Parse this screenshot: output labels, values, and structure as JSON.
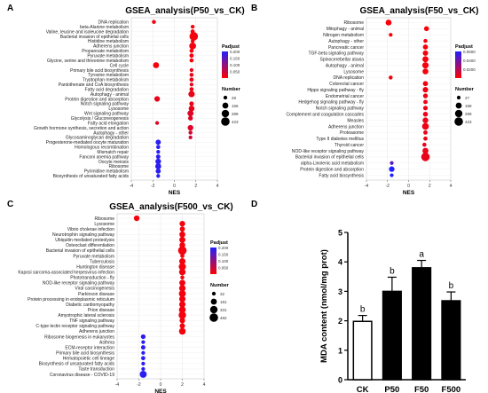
{
  "figure": {
    "panels": [
      {
        "letter": "A"
      },
      {
        "letter": "B"
      },
      {
        "letter": "C"
      },
      {
        "letter": "D"
      }
    ]
  },
  "legend_text": {
    "padjust_title": "Padjust",
    "number_title": "Number"
  },
  "colors": {
    "low_p": "#ff0000",
    "high_p": "#2020ff",
    "bar_black": "#000000",
    "bar_white": "#ffffff"
  },
  "chart_data": [
    {
      "panel": "A",
      "type": "scatter",
      "title": "GSEA_analysis(P50_vs_CK)",
      "xlabel": "NES",
      "ylabel": "",
      "xlim": [
        -4,
        4
      ],
      "xticks": [
        "-4",
        "-2",
        "0",
        "2",
        "4"
      ],
      "grid": true,
      "legend_placement": "right",
      "padjust_range": [
        0,
        0.2
      ],
      "padjust_ticks": [
        "0.200",
        "0.150",
        "0.100",
        "0.050"
      ],
      "size_legend": [
        29,
        156,
        289,
        423
      ],
      "terms": [
        {
          "name": "DNA replication",
          "nes": -1.9,
          "padj": 0.01,
          "n": 36
        },
        {
          "name": "beta-Alanine metabolism",
          "nes": 1.7,
          "padj": 0.01,
          "n": 31
        },
        {
          "name": "Valine, leucine and isoleucine degradation",
          "nes": 1.7,
          "padj": 0.01,
          "n": 48
        },
        {
          "name": "Bacterial invasion of epithelial cells",
          "nes": 1.8,
          "padj": 0.01,
          "n": 423
        },
        {
          "name": "Histidine metabolism",
          "nes": 1.7,
          "padj": 0.01,
          "n": 30
        },
        {
          "name": "Adherens junction",
          "nes": 1.7,
          "padj": 0.01,
          "n": 220
        },
        {
          "name": "Propanoate metabolism",
          "nes": 1.6,
          "padj": 0.01,
          "n": 40
        },
        {
          "name": "Pyruvate metabolism",
          "nes": 1.6,
          "padj": 0.01,
          "n": 50
        },
        {
          "name": "Glycine, serine and threonine metabolism",
          "nes": 1.6,
          "padj": 0.01,
          "n": 40
        },
        {
          "name": "Cell cycle",
          "nes": -1.7,
          "padj": 0.01,
          "n": 156
        },
        {
          "name": "Primary bile acid biosynthesis",
          "nes": 1.6,
          "padj": 0.02,
          "n": 29
        },
        {
          "name": "Tyrosine metabolism",
          "nes": 1.6,
          "padj": 0.02,
          "n": 40
        },
        {
          "name": "Tryptophan metabolism",
          "nes": 1.6,
          "padj": 0.02,
          "n": 45
        },
        {
          "name": "Pantothenate and CoA biosynthesis",
          "nes": 1.6,
          "padj": 0.02,
          "n": 29
        },
        {
          "name": "Fatty acid degradation",
          "nes": 1.6,
          "padj": 0.02,
          "n": 45
        },
        {
          "name": "Autophagy - animal",
          "nes": 1.6,
          "padj": 0.02,
          "n": 180
        },
        {
          "name": "Protein digestion and absorption",
          "nes": -1.6,
          "padj": 0.02,
          "n": 120
        },
        {
          "name": "Notch signaling pathway",
          "nes": 1.6,
          "padj": 0.02,
          "n": 60
        },
        {
          "name": "Lysosome",
          "nes": 1.6,
          "padj": 0.02,
          "n": 140
        },
        {
          "name": "Wnt signaling pathway",
          "nes": 1.5,
          "padj": 0.03,
          "n": 160
        },
        {
          "name": "Glycolysis / Gluconeogenesis",
          "nes": 1.5,
          "padj": 0.03,
          "n": 70
        },
        {
          "name": "Fatty acid elongation",
          "nes": -1.6,
          "padj": 0.03,
          "n": 29
        },
        {
          "name": "Growth hormone synthesis, secretion and action",
          "nes": 1.5,
          "padj": 0.03,
          "n": 130
        },
        {
          "name": "Autophagy - other",
          "nes": 1.5,
          "padj": 0.04,
          "n": 35
        },
        {
          "name": "Glycosaminoglycan degradation",
          "nes": 1.5,
          "padj": 0.04,
          "n": 29
        },
        {
          "name": "Progesterone-mediated oocyte maturation",
          "nes": -1.5,
          "padj": 0.19,
          "n": 100
        },
        {
          "name": "Homologous recombination",
          "nes": -1.5,
          "padj": 0.19,
          "n": 40
        },
        {
          "name": "Mismatch repair",
          "nes": -1.5,
          "padj": 0.19,
          "n": 30
        },
        {
          "name": "Fanconi anemia pathway",
          "nes": -1.5,
          "padj": 0.19,
          "n": 55
        },
        {
          "name": "Oocyte meiosis",
          "nes": -1.5,
          "padj": 0.19,
          "n": 130
        },
        {
          "name": "Ribosome",
          "nes": -1.5,
          "padj": 0.19,
          "n": 150
        },
        {
          "name": "Pyrimidine metabolism",
          "nes": -1.5,
          "padj": 0.19,
          "n": 90
        },
        {
          "name": "Biosynthesis of unsaturated fatty acids",
          "nes": -1.5,
          "padj": 0.19,
          "n": 30
        }
      ]
    },
    {
      "panel": "B",
      "type": "scatter",
      "title": "GSEA_analysis(F50_vs_CK)",
      "xlabel": "NES",
      "ylabel": "",
      "xlim": [
        -4,
        4
      ],
      "xticks": [
        "-4",
        "-2",
        "0",
        "2",
        "4"
      ],
      "grid": true,
      "legend_placement": "right",
      "padjust_range": [
        0,
        0.06
      ],
      "padjust_ticks": [
        "0.0600",
        "0.0400",
        "0.0200"
      ],
      "size_legend": [
        27,
        158,
        289,
        423
      ],
      "terms": [
        {
          "name": "Ribosome",
          "nes": -1.9,
          "padj": 0.002,
          "n": 150
        },
        {
          "name": "Mitophagy - animal",
          "nes": 1.7,
          "padj": 0.002,
          "n": 80
        },
        {
          "name": "Nitrogen metabolism",
          "nes": -1.7,
          "padj": 0.002,
          "n": 27
        },
        {
          "name": "Autophagy - other",
          "nes": 1.6,
          "padj": 0.003,
          "n": 35
        },
        {
          "name": "Pancreatic cancer",
          "nes": 1.6,
          "padj": 0.003,
          "n": 90
        },
        {
          "name": "TGF-beta signaling pathway",
          "nes": 1.6,
          "padj": 0.003,
          "n": 110
        },
        {
          "name": "Spinocerebellar ataxia",
          "nes": 1.6,
          "padj": 0.003,
          "n": 160
        },
        {
          "name": "Autophagy - animal",
          "nes": 1.6,
          "padj": 0.003,
          "n": 180
        },
        {
          "name": "Lysosome",
          "nes": 1.6,
          "padj": 0.003,
          "n": 140
        },
        {
          "name": "DNA replication",
          "nes": -1.7,
          "padj": 0.004,
          "n": 36
        },
        {
          "name": "Colorectal cancer",
          "nes": 1.6,
          "padj": 0.004,
          "n": 90
        },
        {
          "name": "Hippo signaling pathway - fly",
          "nes": 1.6,
          "padj": 0.004,
          "n": 120
        },
        {
          "name": "Endometrial cancer",
          "nes": 1.6,
          "padj": 0.005,
          "n": 70
        },
        {
          "name": "Hedgehog signaling pathway - fly",
          "nes": 1.6,
          "padj": 0.005,
          "n": 50
        },
        {
          "name": "Notch signaling pathway",
          "nes": 1.6,
          "padj": 0.005,
          "n": 60
        },
        {
          "name": "Complement and coagulation cascades",
          "nes": 1.6,
          "padj": 0.005,
          "n": 80
        },
        {
          "name": "Measles",
          "nes": 1.6,
          "padj": 0.005,
          "n": 130
        },
        {
          "name": "Adherens junction",
          "nes": 1.6,
          "padj": 0.005,
          "n": 220
        },
        {
          "name": "Proteasome",
          "nes": 1.6,
          "padj": 0.006,
          "n": 50
        },
        {
          "name": "Type II diabetes mellitus",
          "nes": 1.6,
          "padj": 0.006,
          "n": 45
        },
        {
          "name": "Thyroid cancer",
          "nes": 1.5,
          "padj": 0.006,
          "n": 40
        },
        {
          "name": "NOD-like receptor signaling pathway",
          "nes": 1.6,
          "padj": 0.006,
          "n": 160
        },
        {
          "name": "Bacterial invasion of epithelial cells",
          "nes": 1.6,
          "padj": 0.006,
          "n": 423
        },
        {
          "name": "alpha-Linolenic acid metabolism",
          "nes": -1.6,
          "padj": 0.045,
          "n": 27
        },
        {
          "name": "Protein digestion and absorption",
          "nes": -1.6,
          "padj": 0.06,
          "n": 120
        },
        {
          "name": "Fatty acid biosynthesis",
          "nes": -1.6,
          "padj": 0.06,
          "n": 27
        }
      ]
    },
    {
      "panel": "C",
      "type": "scatter",
      "title": "GSEA_analysis(F500_vs_CK)",
      "xlabel": "NES",
      "ylabel": "",
      "xlim": [
        -4,
        4
      ],
      "xticks": [
        "-4",
        "-2",
        "0",
        "2",
        "4"
      ],
      "grid": true,
      "legend_placement": "right",
      "padjust_range": [
        0,
        0.2
      ],
      "padjust_ticks": [
        "0.200",
        "0.150",
        "0.100",
        "0.050"
      ],
      "size_legend": [
        32,
        181,
        331,
        482
      ],
      "terms": [
        {
          "name": "Ribosome",
          "nes": -2.2,
          "padj": 0.01,
          "n": 150
        },
        {
          "name": "Lysosome",
          "nes": 2.0,
          "padj": 0.01,
          "n": 140
        },
        {
          "name": "Vibrio cholerae infection",
          "nes": 2.0,
          "padj": 0.01,
          "n": 110
        },
        {
          "name": "Neurotrophin signaling pathway",
          "nes": 2.0,
          "padj": 0.01,
          "n": 170
        },
        {
          "name": "Ubiquitin mediated proteolysis",
          "nes": 2.0,
          "padj": 0.01,
          "n": 190
        },
        {
          "name": "Osteoclast differentiation",
          "nes": 2.0,
          "padj": 0.01,
          "n": 160
        },
        {
          "name": "Bacterial invasion of epithelial cells",
          "nes": 2.0,
          "padj": 0.01,
          "n": 482
        },
        {
          "name": "Pyruvate metabolism",
          "nes": 2.0,
          "padj": 0.01,
          "n": 50
        },
        {
          "name": "Tuberculosis",
          "nes": 2.0,
          "padj": 0.01,
          "n": 200
        },
        {
          "name": "Huntington disease",
          "nes": 2.0,
          "padj": 0.01,
          "n": 300
        },
        {
          "name": "Kaposi sarcoma-associated herpesvirus infection",
          "nes": 2.0,
          "padj": 0.01,
          "n": 230
        },
        {
          "name": "Phototransduction - fly",
          "nes": 2.0,
          "padj": 0.01,
          "n": 40
        },
        {
          "name": "NOD-like receptor signaling pathway",
          "nes": 2.0,
          "padj": 0.01,
          "n": 180
        },
        {
          "name": "Viral carcinogenesis",
          "nes": 2.0,
          "padj": 0.01,
          "n": 220
        },
        {
          "name": "Parkinson disease",
          "nes": 2.0,
          "padj": 0.01,
          "n": 270
        },
        {
          "name": "Protein processing in endoplasmic reticulum",
          "nes": 2.0,
          "padj": 0.01,
          "n": 210
        },
        {
          "name": "Diabetic cardiomyopathy",
          "nes": 2.0,
          "padj": 0.01,
          "n": 200
        },
        {
          "name": "Prion disease",
          "nes": 2.0,
          "padj": 0.01,
          "n": 260
        },
        {
          "name": "Amyotrophic lateral sclerosis",
          "nes": 2.0,
          "padj": 0.01,
          "n": 330
        },
        {
          "name": "TNF signaling pathway",
          "nes": 2.0,
          "padj": 0.01,
          "n": 140
        },
        {
          "name": "C-type lectin receptor signaling pathway",
          "nes": 2.0,
          "padj": 0.01,
          "n": 120
        },
        {
          "name": "Adherens junction",
          "nes": 2.0,
          "padj": 0.01,
          "n": 240
        },
        {
          "name": "Ribosome biogenesis in eukaryotes",
          "nes": -1.6,
          "padj": 0.19,
          "n": 80
        },
        {
          "name": "Asthma",
          "nes": -1.6,
          "padj": 0.19,
          "n": 32
        },
        {
          "name": "ECM-receptor interaction",
          "nes": -1.6,
          "padj": 0.19,
          "n": 60
        },
        {
          "name": "Primary bile acid biosynthesis",
          "nes": -1.6,
          "padj": 0.19,
          "n": 32
        },
        {
          "name": "Hematopoietic cell lineage",
          "nes": -1.6,
          "padj": 0.19,
          "n": 50
        },
        {
          "name": "Biosynthesis of unsaturated fatty acids",
          "nes": -1.6,
          "padj": 0.19,
          "n": 32
        },
        {
          "name": "Taste transduction",
          "nes": -1.6,
          "padj": 0.19,
          "n": 32
        },
        {
          "name": "Coronavirus disease - COVID-19",
          "nes": -1.6,
          "padj": 0.19,
          "n": 280
        }
      ]
    },
    {
      "panel": "D",
      "type": "bar",
      "title": "",
      "xlabel": "",
      "ylabel": "MDA content (nmol/mg prot)",
      "ylim": [
        0,
        5
      ],
      "yticks": [
        "0",
        "1",
        "2",
        "3",
        "4",
        "5"
      ],
      "categories": [
        "CK",
        "P50",
        "F50",
        "F500"
      ],
      "values": [
        1.98,
        3.0,
        3.8,
        2.68
      ],
      "errors": [
        0.2,
        0.48,
        0.25,
        0.3
      ],
      "letters": [
        "b",
        "b",
        "a",
        "b"
      ],
      "fills": [
        "white",
        "black",
        "black",
        "black"
      ]
    }
  ]
}
